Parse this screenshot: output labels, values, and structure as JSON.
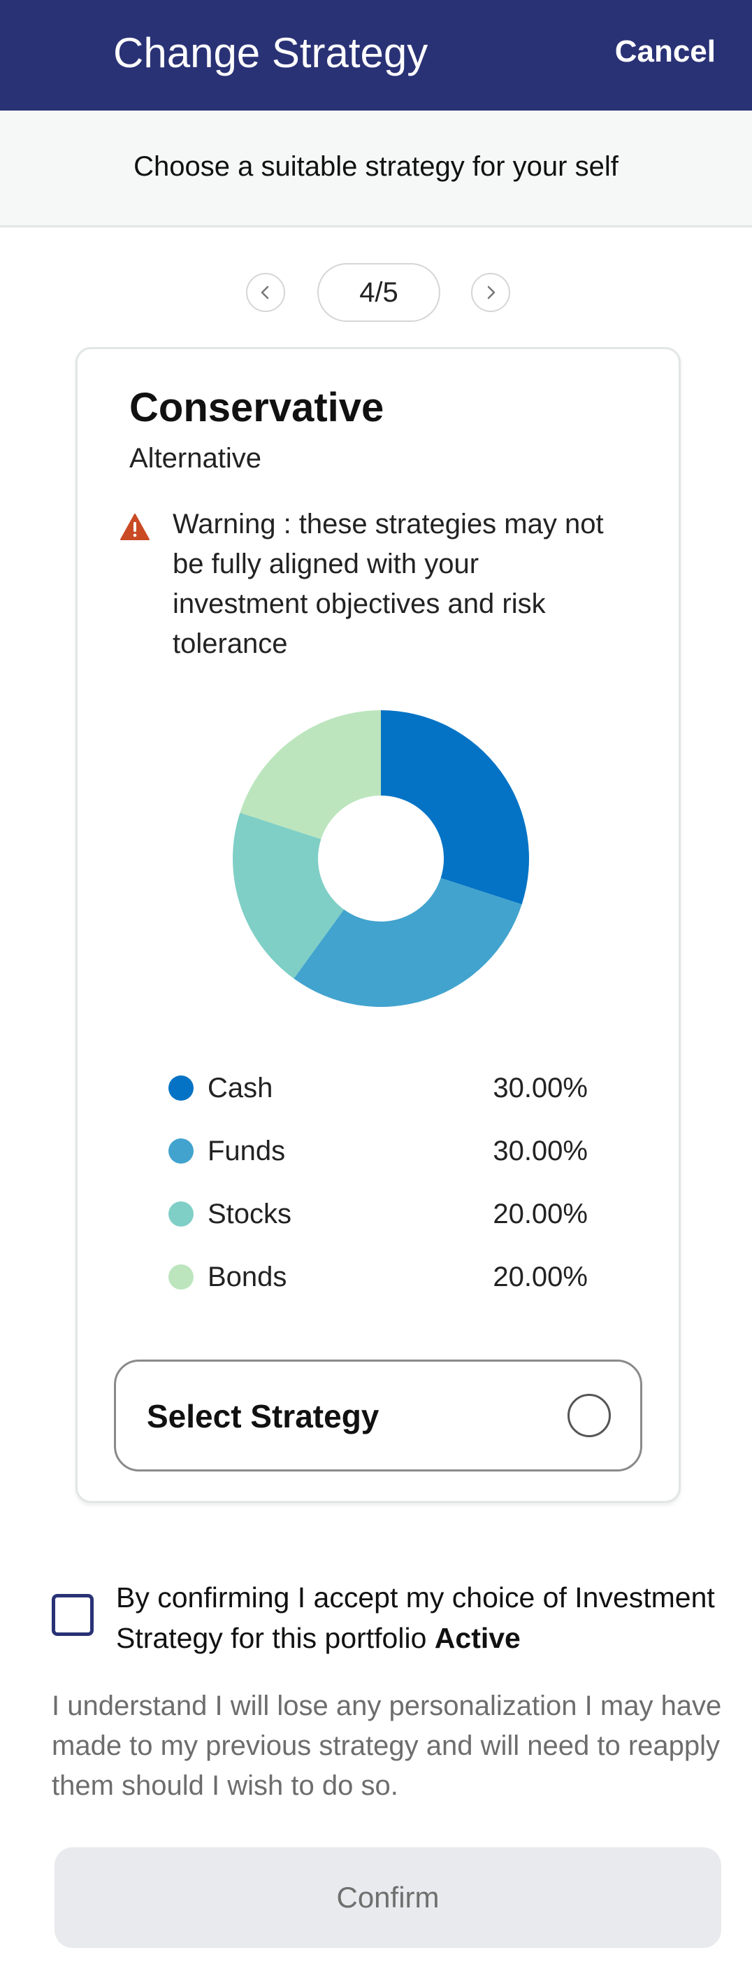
{
  "header": {
    "title": "Change Strategy",
    "cancel_label": "Cancel"
  },
  "subheader": {
    "text": "Choose a suitable strategy for your self"
  },
  "pager": {
    "label": "4/5"
  },
  "card": {
    "title": "Conservative",
    "subtitle": "Alternative",
    "warning": "Warning : these strategies may not be fully aligned with your investment objectives and risk tolerance",
    "select_label": "Select Strategy"
  },
  "chart_data": {
    "type": "pie",
    "categories": [
      "Cash",
      "Funds",
      "Stocks",
      "Bonds"
    ],
    "values": [
      30,
      30,
      20,
      20
    ],
    "value_labels": [
      "30.00%",
      "30.00%",
      "20.00%",
      "20.00%"
    ],
    "colors": [
      "#0473c5",
      "#42a3ce",
      "#7fcfc6",
      "#bce5bd"
    ],
    "donut": true
  },
  "legend": [
    {
      "label": "Cash",
      "value": "30.00%",
      "color": "#0473c5"
    },
    {
      "label": "Funds",
      "value": "30.00%",
      "color": "#42a3ce"
    },
    {
      "label": "Stocks",
      "value": "20.00%",
      "color": "#7fcfc6"
    },
    {
      "label": "Bonds",
      "value": "20.00%",
      "color": "#bce5bd"
    }
  ],
  "confirm": {
    "text": "By confirming I accept my choice of Investment Strategy for this portfolio",
    "strategy_name": "Active",
    "disclaimer": "I understand I will lose any personalization I may have made to my previous strategy and will need to reapply them should I wish to do so.",
    "button_label": "Confirm"
  },
  "colors": {
    "header_bg": "#2a3276",
    "warning_icon": "#c94a23",
    "checkbox_border": "#2a3276"
  }
}
